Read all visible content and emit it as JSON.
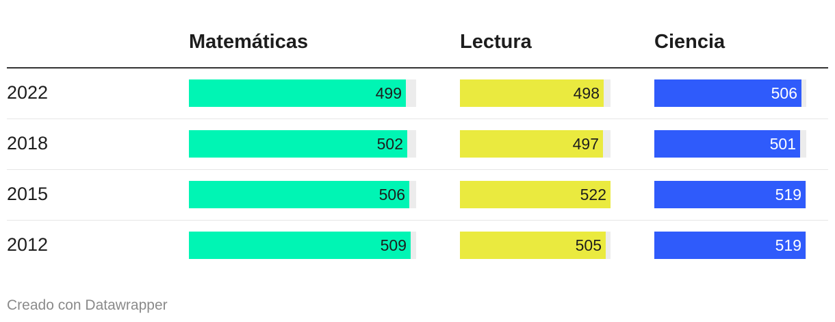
{
  "chart_data": {
    "type": "table",
    "columns": [
      {
        "name": "Matemáticas",
        "color": "#00f5b4",
        "text_color": "#1d1d1d"
      },
      {
        "name": "Lectura",
        "color": "#eaea3f",
        "text_color": "#1d1d1d"
      },
      {
        "name": "Ciencia",
        "color": "#2f5bfb",
        "text_color": "#ffffff"
      }
    ],
    "bar_max": 522,
    "rows": [
      {
        "year": "2022",
        "values": [
          499,
          498,
          506
        ]
      },
      {
        "year": "2018",
        "values": [
          502,
          497,
          501
        ]
      },
      {
        "year": "2015",
        "values": [
          506,
          522,
          519
        ]
      },
      {
        "year": "2012",
        "values": [
          509,
          505,
          519
        ]
      }
    ],
    "track_color": "#ececec"
  },
  "footer": {
    "credit": "Creado con Datawrapper"
  }
}
